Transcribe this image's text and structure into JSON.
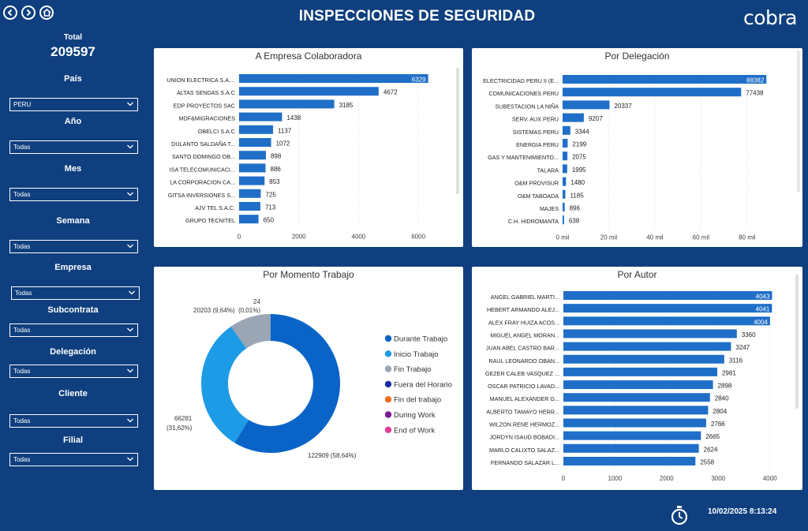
{
  "header": {
    "title": "INSPECCIONES DE  SEGURIDAD",
    "logo_text": "cobra"
  },
  "sidebar": {
    "total_label": "Total",
    "total_value": "209597",
    "filters": [
      {
        "label": "País",
        "value": "PERU"
      },
      {
        "label": "Año",
        "value": "Todas"
      },
      {
        "label": "Mes",
        "value": "Todas"
      },
      {
        "label": "Semana",
        "value": "Todas"
      },
      {
        "label": "Empresa",
        "value": "Todas"
      },
      {
        "label": "Subcontrata",
        "value": "Todas"
      },
      {
        "label": "Delegación",
        "value": "Todas"
      },
      {
        "label": "Cliente",
        "value": "Todas"
      },
      {
        "label": "Filial",
        "value": "Todas"
      }
    ]
  },
  "footer": {
    "timestamp": "10/02/2025 8:13:24"
  },
  "colors": {
    "background": "#0f3f7e",
    "bar": "#1f6fc8",
    "durante": "#0a64c8",
    "inicio": "#1e9be6",
    "fin": "#9aa6b4",
    "fuera": "#1a2f9e",
    "fin_del_trabajo": "#f07020",
    "during_work": "#7a1a96",
    "end_of_work": "#e0409a"
  },
  "chart_data": [
    {
      "type": "bar",
      "orientation": "horizontal",
      "title": "A Empresa Colaboradora",
      "categories": [
        "UNION ELECTRICA S.A....",
        "ALTAS SENDAS S.A.C",
        "EDP PROYECTOS SAC",
        "MDF&MIGRACIONES",
        "OBELCI S.A.C",
        "DULANTO SALDAÑA T...",
        "SANTO DOMINGO OB...",
        "ISA TELECOMUNICACI...",
        "LA CORPORACION CA...",
        "GITSA INVERSIONES S...",
        "AJV TEL S.A.C.",
        "GRUPO TECNITEL"
      ],
      "values": [
        6329,
        4672,
        3185,
        1438,
        1137,
        1072,
        898,
        886,
        853,
        725,
        713,
        650
      ],
      "labels": [
        "6329",
        "4672",
        "3185",
        "1438",
        "1137",
        "1072",
        "898",
        "886",
        "853",
        "725",
        "713",
        "650"
      ],
      "xlim": [
        0,
        7000
      ],
      "ticks": [
        0,
        2000,
        4000,
        6000
      ],
      "tick_labels": [
        "0",
        "2000",
        "4000",
        "6000"
      ]
    },
    {
      "type": "bar",
      "orientation": "horizontal",
      "title": "Por Delegación",
      "categories": [
        "ELECTRICIDAD PERU II (E...",
        "COMUNICACIONES PERU",
        "SUBESTACION LA NIÑA",
        "SERV. AUX PERU",
        "SISTEMAS PERU",
        "ENERGIA PERU",
        "GAS Y MANTENIMIENTO...",
        "TALARA",
        "O&M PROVISUR",
        "O&M TABOADA",
        "MAJES",
        "C.H. HIDROMANTA"
      ],
      "values": [
        88382,
        77438,
        20337,
        9207,
        3344,
        2199,
        2075,
        1995,
        1480,
        1185,
        896,
        638
      ],
      "labels": [
        "88382",
        "77438",
        "20337",
        "9207",
        "3344",
        "2199",
        "2075",
        "1995",
        "1480",
        "1185",
        "896",
        "638"
      ],
      "xlim": [
        0,
        90000
      ],
      "ticks": [
        0,
        20000,
        40000,
        60000,
        80000
      ],
      "tick_labels": [
        "0 mil",
        "20 mil",
        "40 mil",
        "60 mil",
        "80 mil"
      ]
    },
    {
      "type": "pie",
      "donut": true,
      "title": "Por Momento Trabajo",
      "slices": [
        {
          "name": "Durante Trabajo",
          "value": 122909,
          "label": "122909 (58,64%)",
          "color_key": "durante"
        },
        {
          "name": "Inicio Trabajo",
          "value": 66281,
          "label_line1": "66281",
          "label_line2": "(31,62%)",
          "color_key": "inicio"
        },
        {
          "name": "Fin Trabajo",
          "value": 20203,
          "label": "20203 (9,64%)",
          "color_key": "fin"
        },
        {
          "name": "Fuera del Horario",
          "value": 24,
          "label_line1": "24",
          "label_line2": "(0,01%)",
          "color_key": "fuera"
        }
      ],
      "legend": [
        "Durante Trabajo",
        "Inicio Trabajo",
        "Fin Trabajo",
        "Fuera del Horario",
        "Fin del trabajo",
        "During Work",
        "End of Work"
      ],
      "legend_color_keys": [
        "durante",
        "inicio",
        "fin",
        "fuera",
        "fin_del_trabajo",
        "during_work",
        "end_of_work"
      ],
      "legend_position": "right"
    },
    {
      "type": "bar",
      "orientation": "horizontal",
      "title": "Por Autor",
      "categories": [
        "ANGEL GABRIEL MARTI...",
        "HEBERT ARMANDO ALEJ...",
        "ALEX FRAY HUIZA ACOS...",
        "MIGUEL ANGEL MORAN...",
        "JUAN ABEL CASTRO BAR...",
        "RAUL LEONARDO OBAN...",
        "GEZER CALEB VASQUEZ ...",
        "OSCAR PATRICIO LAVAD...",
        "MANUEL ALEXANDER G...",
        "ALBERTO TAMAYO HERR...",
        "WILZON RENE HERMOZ...",
        "JORDYN ISAUD BOBADI...",
        "MARLO CALIXTO SALAZ...",
        "FERNANDO SALAZAR L..."
      ],
      "values": [
        4043,
        4041,
        4004,
        3360,
        3247,
        3116,
        2981,
        2898,
        2840,
        2804,
        2766,
        2665,
        2624,
        2558
      ],
      "labels": [
        "4043",
        "4041",
        "4004",
        "3360",
        "3247",
        "3116",
        "2981",
        "2898",
        "2840",
        "2804",
        "2766",
        "2665",
        "2624",
        "2558"
      ],
      "xlim": [
        0,
        4250
      ],
      "ticks": [
        0,
        1000,
        2000,
        3000,
        4000
      ],
      "tick_labels": [
        "0",
        "1000",
        "2000",
        "3000",
        "4000"
      ]
    }
  ]
}
